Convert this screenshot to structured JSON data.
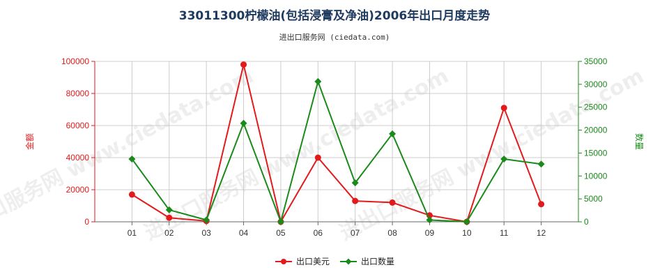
{
  "title": "33011300柠檬油(包括浸膏及净油)2006年出口月度走势",
  "subtitle": "进出口服务网 (ciedata.com)",
  "watermark": "进出口服务网 www.ciedata.com",
  "colors": {
    "left_series": "#e31a1c",
    "right_series": "#1a8a1a",
    "grid": "#cccccc",
    "axis": "#666666",
    "title": "#1f3a5f"
  },
  "chart_data": {
    "type": "line",
    "categories": [
      "01",
      "02",
      "03",
      "04",
      "05",
      "06",
      "07",
      "08",
      "09",
      "10",
      "11",
      "12"
    ],
    "series": [
      {
        "name": "出口美元",
        "axis": "left",
        "color": "#e31a1c",
        "values": [
          17000,
          2500,
          500,
          98000,
          0,
          40000,
          13000,
          12000,
          4000,
          0,
          71000,
          11000
        ]
      },
      {
        "name": "出口数量",
        "axis": "right",
        "color": "#1a8a1a",
        "values": [
          13700,
          2600,
          400,
          21500,
          0,
          30600,
          8500,
          19200,
          400,
          0,
          13700,
          12600
        ]
      }
    ],
    "y_left": {
      "label": "金额",
      "ylim": [
        0,
        100000
      ],
      "ticks": [
        0,
        20000,
        40000,
        60000,
        80000,
        100000
      ],
      "tick_labels": [
        "0",
        "20000",
        "40000",
        "60000",
        "80000",
        "100000"
      ]
    },
    "y_right": {
      "label": "数量",
      "ylim": [
        0,
        35000
      ],
      "ticks": [
        0,
        5000,
        10000,
        15000,
        20000,
        25000,
        30000,
        35000
      ],
      "tick_labels": [
        "0",
        "5000",
        "10000",
        "15000",
        "20000",
        "25000",
        "30000",
        "35000"
      ]
    },
    "grid": true,
    "legend": "bottom-center"
  }
}
